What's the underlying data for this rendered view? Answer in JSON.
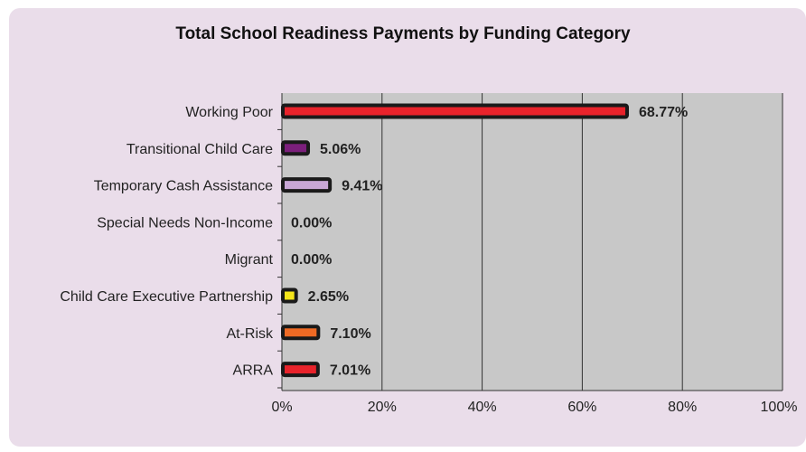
{
  "chart_data": {
    "type": "bar",
    "orientation": "horizontal",
    "title": "Total School Readiness Payments by Funding Category",
    "categories": [
      "Working Poor",
      "Transitional Child Care",
      "Temporary Cash Assistance",
      "Special Needs Non-Income",
      "Migrant",
      "Child Care Executive Partnership",
      "At-Risk",
      "ARRA"
    ],
    "values": [
      68.77,
      5.06,
      9.41,
      0.0,
      0.0,
      2.65,
      7.1,
      7.01
    ],
    "value_labels": [
      "68.77%",
      "5.06%",
      "9.41%",
      "0.00%",
      "0.00%",
      "2.65%",
      "7.10%",
      "7.01%"
    ],
    "bar_colors": [
      "#e8232b",
      "#7b1f7b",
      "#c9a7d6",
      "#c9a7d6",
      "#c9a7d6",
      "#f5e51a",
      "#ef6a24",
      "#e8232b"
    ],
    "xlim": [
      0,
      100
    ],
    "xticks": [
      0,
      20,
      40,
      60,
      80,
      100
    ],
    "xtick_labels": [
      "0%",
      "20%",
      "40%",
      "60%",
      "80%",
      "100%"
    ],
    "xlabel": "",
    "ylabel": "",
    "grid": true,
    "plot_background": "#c8c8c8",
    "bar_outline": "#1a1a1a"
  }
}
